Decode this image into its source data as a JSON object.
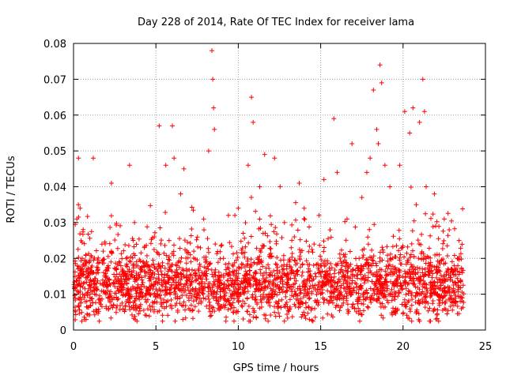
{
  "chart_data": {
    "type": "scatter",
    "title": "Day 228 of 2014, Rate Of TEC Index for receiver lama",
    "xlabel": "GPS time / hours",
    "ylabel": "ROTI / TECUs",
    "xlim": [
      0,
      25
    ],
    "ylim": [
      0,
      0.08
    ],
    "x_ticks": [
      "0",
      "5",
      "10",
      "15",
      "20",
      "25"
    ],
    "y_ticks": [
      "0",
      "0.01",
      "0.02",
      "0.03",
      "0.04",
      "0.05",
      "0.06",
      "0.07",
      "0.08"
    ],
    "grid": true,
    "marker": "+",
    "marker_color": "#ff0000",
    "series": [
      {
        "name": "ROTI",
        "x": [
          0.05,
          0.2,
          0.3,
          0.4,
          0.6,
          0.8,
          1.0,
          1.2,
          1.5,
          1.8,
          2.0,
          2.3,
          2.6,
          2.9,
          3.2,
          3.4,
          3.5,
          3.7,
          4.0,
          4.3,
          4.6,
          4.9,
          5.2,
          5.4,
          5.6,
          5.8,
          6.0,
          6.1,
          6.3,
          6.5,
          6.7,
          7.0,
          7.3,
          7.6,
          7.9,
          8.2,
          8.4,
          8.45,
          8.5,
          8.55,
          8.6,
          8.8,
          9.1,
          9.4,
          9.7,
          10.0,
          10.3,
          10.6,
          10.8,
          10.9,
          11.0,
          11.3,
          11.6,
          11.9,
          12.2,
          12.5,
          12.8,
          13.1,
          13.4,
          13.7,
          14.0,
          14.3,
          14.6,
          14.9,
          15.2,
          15.5,
          15.8,
          16.0,
          16.3,
          16.6,
          16.9,
          17.2,
          17.5,
          17.8,
          18.0,
          18.2,
          18.4,
          18.5,
          18.6,
          18.7,
          18.9,
          19.2,
          19.5,
          19.8,
          20.1,
          20.4,
          20.6,
          20.8,
          21.0,
          21.2,
          21.3,
          21.4,
          21.6,
          21.9,
          22.2,
          22.5,
          22.8,
          23.1,
          23.4,
          23.6
        ],
        "y": [
          0.012,
          0.031,
          0.048,
          0.034,
          0.013,
          0.019,
          0.01,
          0.048,
          0.016,
          0.022,
          0.012,
          0.041,
          0.017,
          0.014,
          0.02,
          0.046,
          0.011,
          0.03,
          0.015,
          0.023,
          0.012,
          0.026,
          0.057,
          0.018,
          0.046,
          0.025,
          0.057,
          0.048,
          0.016,
          0.038,
          0.045,
          0.011,
          0.022,
          0.017,
          0.031,
          0.05,
          0.078,
          0.07,
          0.062,
          0.056,
          0.024,
          0.014,
          0.02,
          0.032,
          0.012,
          0.034,
          0.027,
          0.046,
          0.065,
          0.058,
          0.016,
          0.04,
          0.049,
          0.021,
          0.048,
          0.012,
          0.03,
          0.019,
          0.026,
          0.041,
          0.034,
          0.015,
          0.024,
          0.032,
          0.042,
          0.015,
          0.059,
          0.044,
          0.018,
          0.031,
          0.052,
          0.012,
          0.037,
          0.044,
          0.048,
          0.067,
          0.056,
          0.052,
          0.074,
          0.069,
          0.046,
          0.04,
          0.013,
          0.046,
          0.061,
          0.055,
          0.062,
          0.035,
          0.058,
          0.07,
          0.061,
          0.04,
          0.018,
          0.038,
          0.021,
          0.031,
          0.028,
          0.018,
          0.025,
          0.016
        ]
      }
    ],
    "band": {
      "description": "dense cloud of background points",
      "x_start": 0.0,
      "x_end": 23.7,
      "y_center": 0.0125,
      "y_spread": 0.006,
      "count": 2600
    }
  }
}
